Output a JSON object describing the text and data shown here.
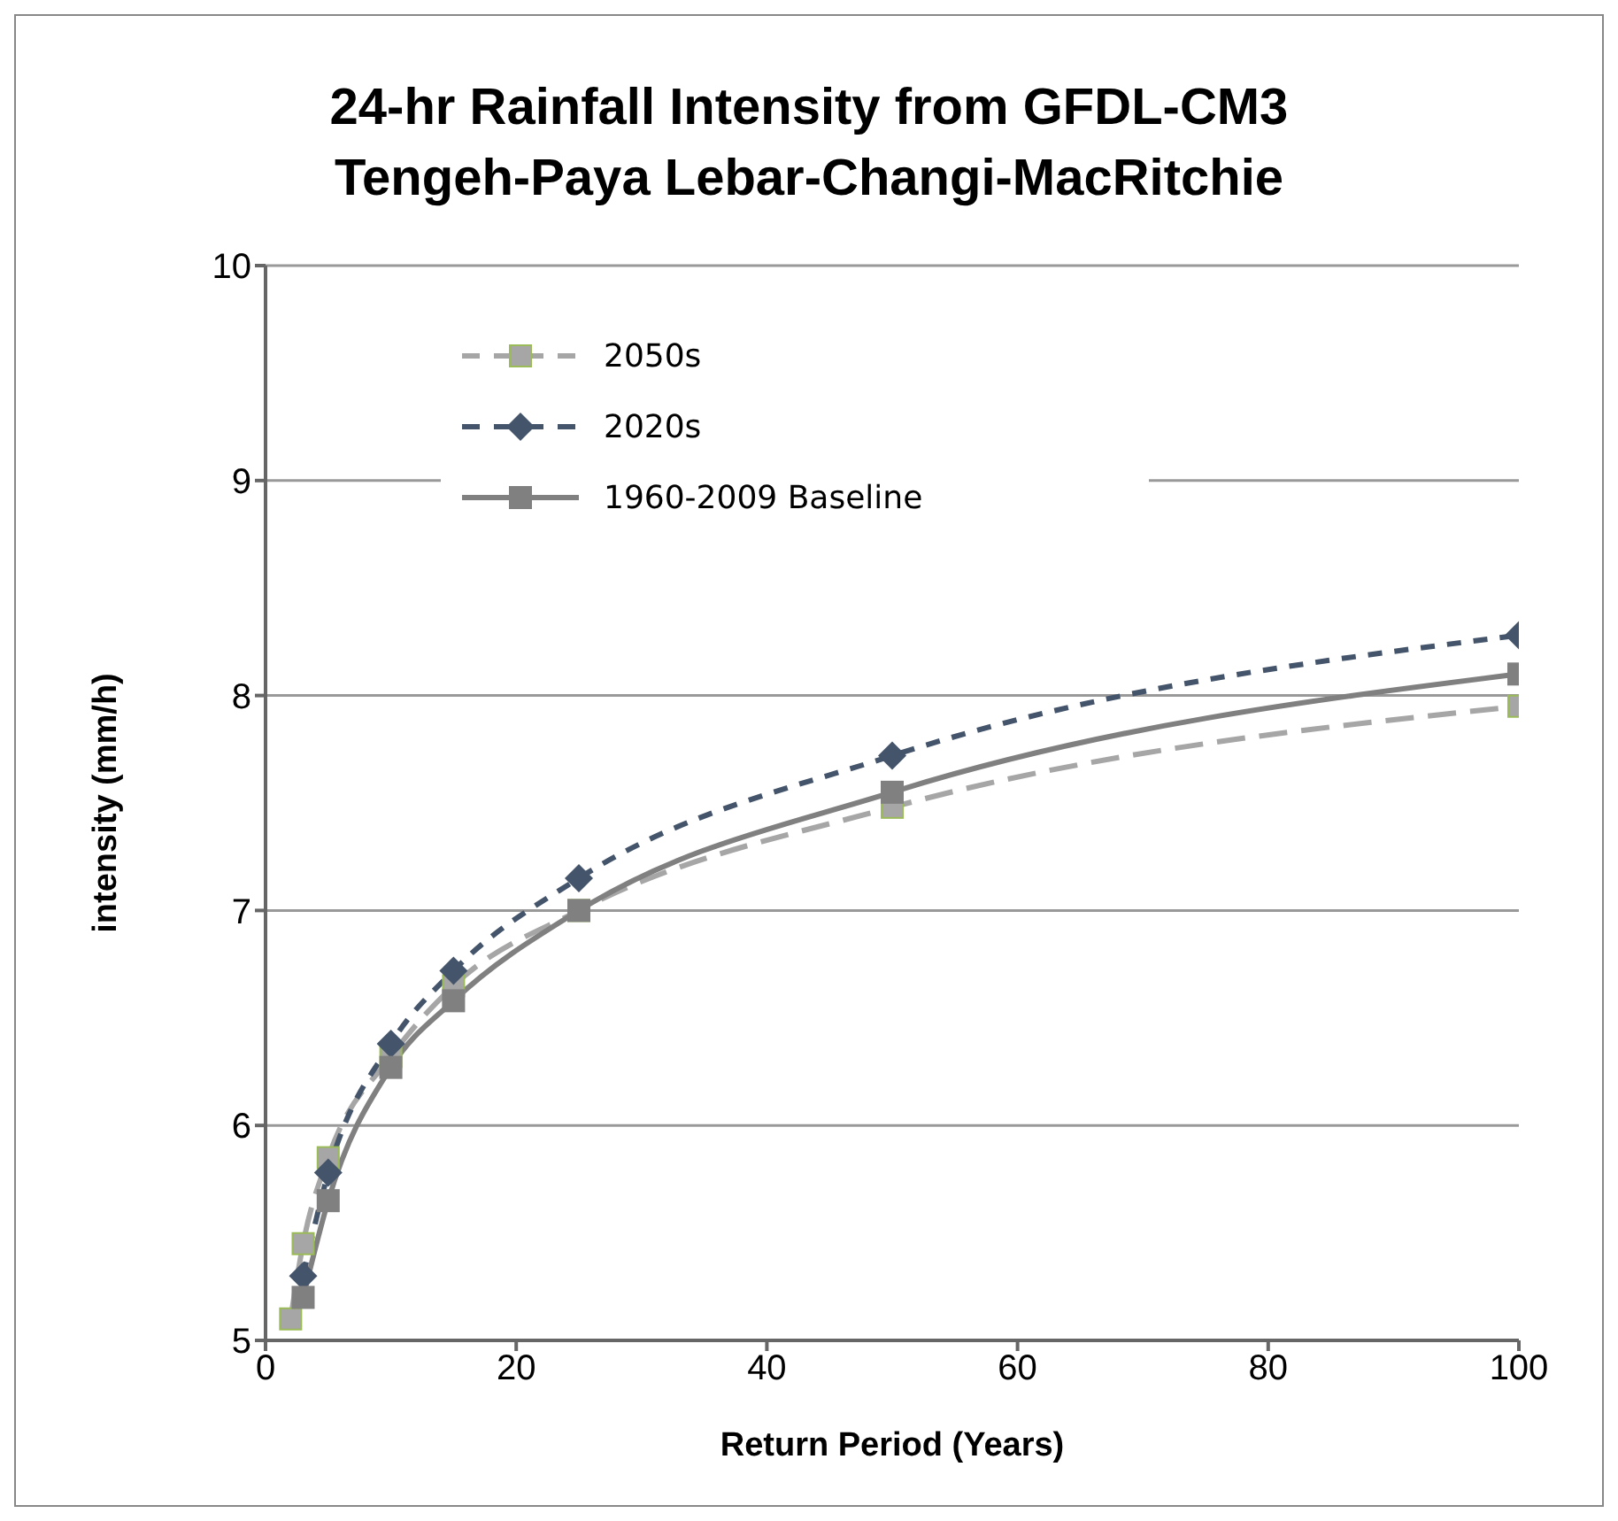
{
  "chart_data": {
    "type": "line",
    "title": "24-hr Rainfall Intensity from GFDL-CM3\nTengeh-Paya Lebar-Changi-MacRitchie",
    "xlabel": "Return Period  (Years)",
    "ylabel": "intensity (mm/h)",
    "xlim": [
      0,
      100
    ],
    "xticks": [
      0,
      20,
      40,
      60,
      80,
      100
    ],
    "ylim": [
      5,
      10
    ],
    "yticks": [
      5,
      6,
      7,
      8,
      9,
      10
    ],
    "grid": "y",
    "legend": "top left",
    "series": [
      {
        "name": "2050s",
        "color": "#a6a6a6",
        "marker": "square",
        "line_style": "dashed",
        "x": [
          2,
          3,
          5,
          10,
          15,
          25,
          50,
          100
        ],
        "values": [
          5.1,
          5.45,
          5.85,
          6.32,
          6.65,
          7.0,
          7.48,
          7.95
        ]
      },
      {
        "name": "2020s",
        "color": "#44546a",
        "marker": "diamond",
        "line_style": "dashed",
        "x": [
          3,
          5,
          10,
          15,
          25,
          50,
          100
        ],
        "values": [
          5.3,
          5.78,
          6.38,
          6.72,
          7.15,
          7.72,
          8.28
        ]
      },
      {
        "name": "1960-2009 Baseline",
        "color": "#808080",
        "marker": "square",
        "line_style": "solid",
        "x": [
          3,
          5,
          10,
          15,
          25,
          50,
          100
        ],
        "values": [
          5.2,
          5.65,
          6.27,
          6.58,
          7.0,
          7.55,
          8.1
        ]
      }
    ]
  }
}
